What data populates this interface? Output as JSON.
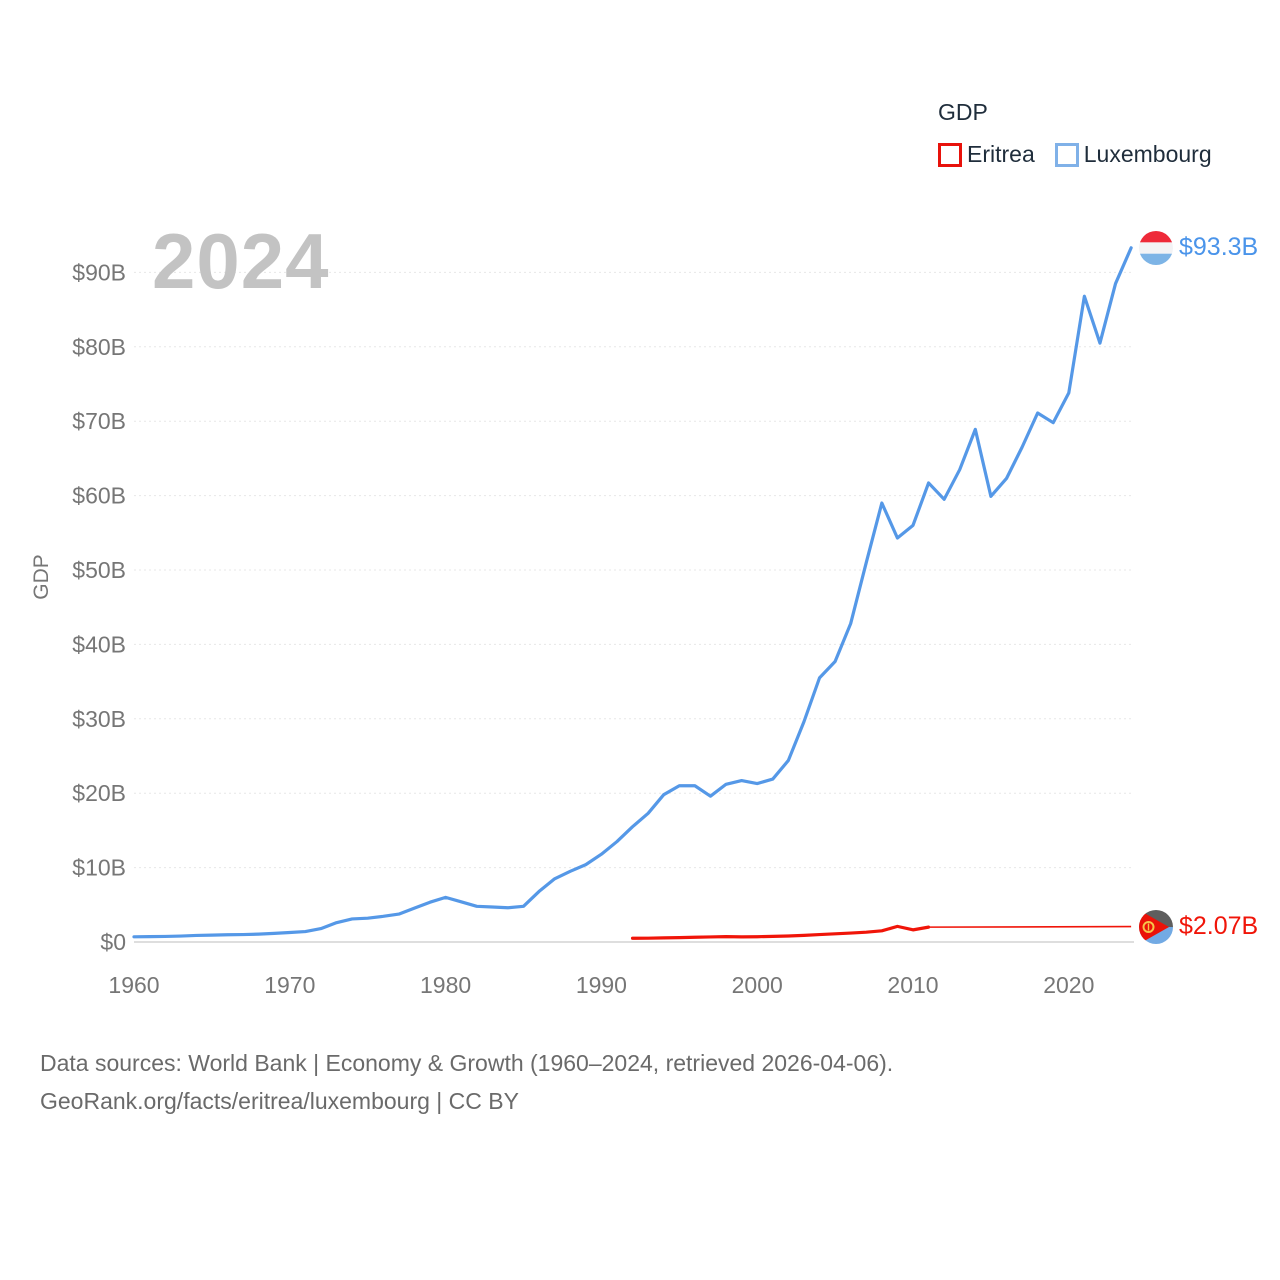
{
  "colors": {
    "watermark": "#c3c3c3",
    "axis_text": "#767676",
    "grid": "#e7e7e7",
    "grid_zero": "#dedede",
    "legend_text": "#1f2d3b",
    "footer_text": "#6a6a6a",
    "blue_label": "#4a94ea",
    "red_label": "#f01509",
    "eritrea_swatch": "#e8120b",
    "luxembourg_swatch": "#80b1e8",
    "flag_lux_red": "#ee2a39",
    "flag_lux_white": "#f3f3f5",
    "flag_lux_blue": "#7db4e6",
    "flag_eri_top": "#5e5e5e",
    "flag_eri_blue": "#72aae4",
    "flag_eri_red": "#ea1208",
    "flag_eri_gold": "#f6c54a"
  },
  "watermark": {
    "year": "2024"
  },
  "legend": {
    "title": "GDP",
    "series": [
      {
        "label": "Eritrea",
        "swatch_color": "#e8120b"
      },
      {
        "label": "Luxembourg",
        "swatch_color": "#80b1e8"
      }
    ]
  },
  "y_axis": {
    "title": "GDP",
    "ticks": [
      "$0",
      "$10B",
      "$20B",
      "$30B",
      "$40B",
      "$50B",
      "$60B",
      "$70B",
      "$80B",
      "$90B"
    ],
    "tick_values": [
      0,
      10,
      20,
      30,
      40,
      50,
      60,
      70,
      80,
      90
    ]
  },
  "x_axis": {
    "ticks": [
      "1960",
      "1970",
      "1980",
      "1990",
      "2000",
      "2010",
      "2020"
    ],
    "tick_values": [
      1960,
      1970,
      1980,
      1990,
      2000,
      2010,
      2020
    ]
  },
  "end_labels": {
    "luxembourg": {
      "value": "$93.3B"
    },
    "eritrea": {
      "value": "$2.07B"
    }
  },
  "footer": {
    "line1": "Data sources: World Bank | Economy & Growth (1960–2024, retrieved 2026-04-06).",
    "line2": "GeoRank.org/facts/eritrea/luxembourg | CC BY"
  },
  "chart_data": {
    "type": "line",
    "title": "GDP",
    "ylabel": "GDP",
    "xlabel": "",
    "xlim": [
      1960,
      2024
    ],
    "ylim": [
      0,
      95
    ],
    "grid": "horizontal-dotted",
    "legend_position": "top-right",
    "current_year_label": "2024",
    "series": [
      {
        "name": "Eritrea",
        "color": "#f01509",
        "end_label": "$2.07B",
        "points": [
          [
            1992,
            0.5
          ],
          [
            1993,
            0.51
          ],
          [
            1994,
            0.55
          ],
          [
            1995,
            0.59
          ],
          [
            1996,
            0.64
          ],
          [
            1997,
            0.68
          ],
          [
            1998,
            0.72
          ],
          [
            1999,
            0.69
          ],
          [
            2000,
            0.71
          ],
          [
            2001,
            0.76
          ],
          [
            2002,
            0.81
          ],
          [
            2003,
            0.89
          ],
          [
            2004,
            1.0
          ],
          [
            2005,
            1.1
          ],
          [
            2006,
            1.2
          ],
          [
            2007,
            1.32
          ],
          [
            2008,
            1.5
          ],
          [
            2009,
            2.1
          ],
          [
            2010,
            1.63
          ],
          [
            2011,
            2.0
          ]
        ],
        "interpolated_points": [
          [
            2011,
            2.0
          ],
          [
            2024,
            2.07
          ]
        ]
      },
      {
        "name": "Luxembourg",
        "color": "#5598e7",
        "end_label": "$93.3B",
        "points": [
          [
            1960,
            0.7
          ],
          [
            1961,
            0.72
          ],
          [
            1962,
            0.75
          ],
          [
            1963,
            0.8
          ],
          [
            1964,
            0.88
          ],
          [
            1965,
            0.92
          ],
          [
            1966,
            0.97
          ],
          [
            1967,
            1.0
          ],
          [
            1968,
            1.06
          ],
          [
            1969,
            1.16
          ],
          [
            1970,
            1.28
          ],
          [
            1971,
            1.4
          ],
          [
            1972,
            1.8
          ],
          [
            1973,
            2.6
          ],
          [
            1974,
            3.1
          ],
          [
            1975,
            3.2
          ],
          [
            1976,
            3.45
          ],
          [
            1977,
            3.75
          ],
          [
            1978,
            4.55
          ],
          [
            1979,
            5.35
          ],
          [
            1980,
            6.0
          ],
          [
            1981,
            5.4
          ],
          [
            1982,
            4.8
          ],
          [
            1983,
            4.7
          ],
          [
            1984,
            4.6
          ],
          [
            1985,
            4.8
          ],
          [
            1986,
            6.8
          ],
          [
            1987,
            8.5
          ],
          [
            1988,
            9.5
          ],
          [
            1989,
            10.4
          ],
          [
            1990,
            11.8
          ],
          [
            1991,
            13.5
          ],
          [
            1992,
            15.5
          ],
          [
            1993,
            17.3
          ],
          [
            1994,
            19.8
          ],
          [
            1995,
            21.0
          ],
          [
            1996,
            21.0
          ],
          [
            1997,
            19.6
          ],
          [
            1998,
            21.2
          ],
          [
            1999,
            21.7
          ],
          [
            2000,
            21.3
          ],
          [
            2001,
            21.9
          ],
          [
            2002,
            24.4
          ],
          [
            2003,
            29.6
          ],
          [
            2004,
            35.5
          ],
          [
            2005,
            37.7
          ],
          [
            2006,
            42.8
          ],
          [
            2007,
            51.0
          ],
          [
            2008,
            59.0
          ],
          [
            2009,
            54.3
          ],
          [
            2010,
            56.0
          ],
          [
            2011,
            61.7
          ],
          [
            2012,
            59.5
          ],
          [
            2013,
            63.5
          ],
          [
            2014,
            68.9
          ],
          [
            2015,
            59.9
          ],
          [
            2016,
            62.3
          ],
          [
            2017,
            66.5
          ],
          [
            2018,
            71.1
          ],
          [
            2019,
            69.8
          ],
          [
            2020,
            73.8
          ],
          [
            2021,
            86.8
          ],
          [
            2022,
            80.5
          ],
          [
            2023,
            88.5
          ],
          [
            2024,
            93.3
          ]
        ]
      }
    ]
  }
}
